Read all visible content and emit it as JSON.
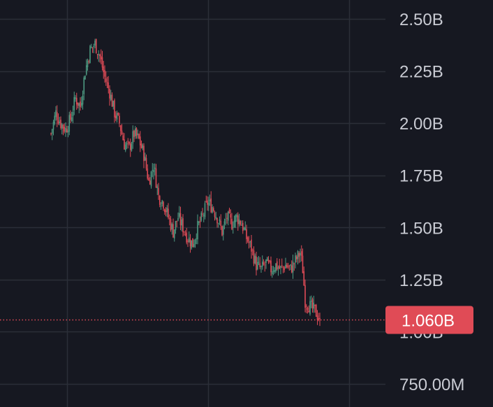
{
  "chart_data": {
    "type": "candlestick",
    "y_tick_labels": [
      "2.50B",
      "2.25B",
      "2.00B",
      "1.75B",
      "1.50B",
      "1.25B",
      "1.00B",
      "750.00M"
    ],
    "y_tick_values": [
      2.5,
      2.25,
      2.0,
      1.75,
      1.5,
      1.25,
      1.0,
      0.75
    ],
    "y_unit": "billions",
    "ylim": [
      0.72,
      2.58
    ],
    "current_value": 1.06,
    "current_value_label": "1.060B",
    "grid": true,
    "colors": {
      "background": "#161821",
      "grid": "#2b2e38",
      "up": "#4e9a82",
      "down": "#e04b56",
      "price_line": "#e04b56",
      "badge": "#e04b56",
      "axis_text": "#c9cbd3"
    },
    "close_path": [
      [
        0,
        1.95
      ],
      [
        4,
        2.05
      ],
      [
        8,
        2.0
      ],
      [
        12,
        1.97
      ],
      [
        16,
        2.02
      ],
      [
        20,
        2.12
      ],
      [
        24,
        2.08
      ],
      [
        28,
        2.25
      ],
      [
        32,
        2.35
      ],
      [
        36,
        2.38
      ],
      [
        40,
        2.32
      ],
      [
        44,
        2.22
      ],
      [
        48,
        2.15
      ],
      [
        52,
        2.05
      ],
      [
        56,
        2.0
      ],
      [
        60,
        1.9
      ],
      [
        64,
        1.88
      ],
      [
        68,
        1.95
      ],
      [
        72,
        1.92
      ],
      [
        76,
        1.85
      ],
      [
        80,
        1.72
      ],
      [
        84,
        1.8
      ],
      [
        88,
        1.65
      ],
      [
        92,
        1.62
      ],
      [
        96,
        1.55
      ],
      [
        100,
        1.48
      ],
      [
        104,
        1.55
      ],
      [
        108,
        1.5
      ],
      [
        112,
        1.45
      ],
      [
        116,
        1.42
      ],
      [
        120,
        1.5
      ],
      [
        124,
        1.55
      ],
      [
        128,
        1.62
      ],
      [
        132,
        1.6
      ],
      [
        136,
        1.55
      ],
      [
        140,
        1.48
      ],
      [
        144,
        1.55
      ],
      [
        148,
        1.52
      ],
      [
        152,
        1.55
      ],
      [
        156,
        1.52
      ],
      [
        160,
        1.45
      ],
      [
        164,
        1.4
      ],
      [
        168,
        1.32
      ],
      [
        172,
        1.3
      ],
      [
        176,
        1.33
      ],
      [
        180,
        1.3
      ],
      [
        184,
        1.32
      ],
      [
        188,
        1.3
      ],
      [
        192,
        1.32
      ],
      [
        196,
        1.3
      ],
      [
        200,
        1.34
      ],
      [
        204,
        1.38
      ],
      [
        206,
        1.3
      ],
      [
        208,
        1.15
      ],
      [
        212,
        1.12
      ],
      [
        216,
        1.1
      ],
      [
        220,
        1.06
      ]
    ]
  }
}
